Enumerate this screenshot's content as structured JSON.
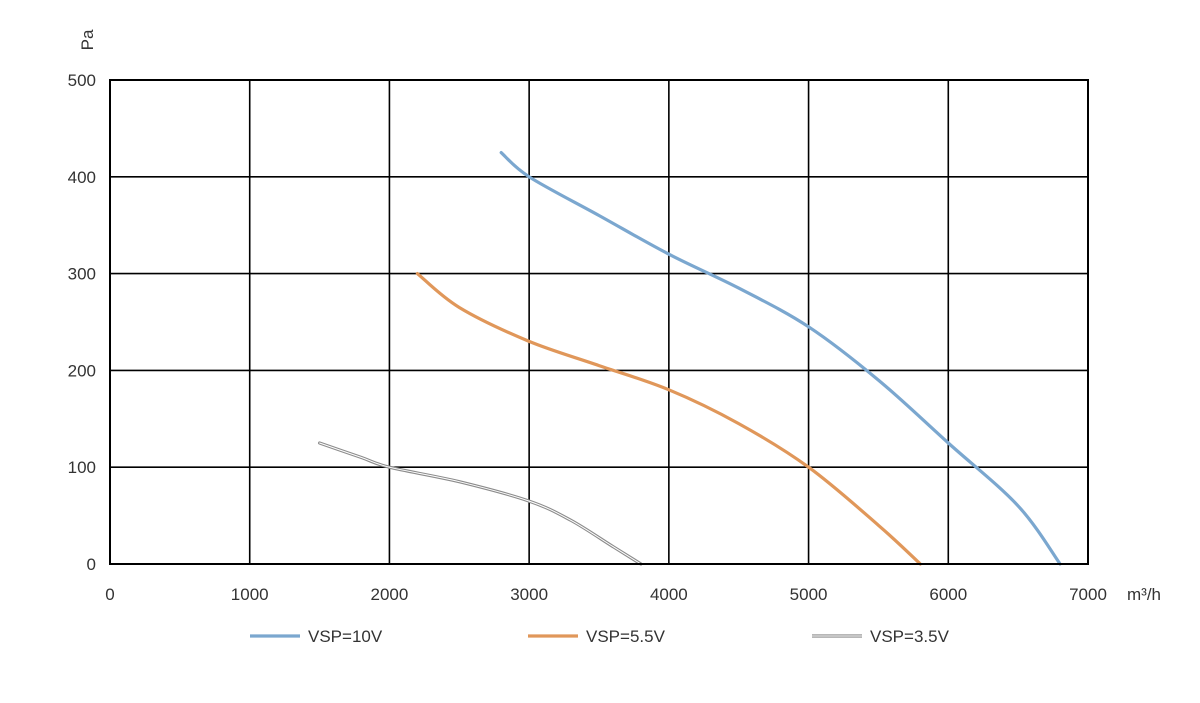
{
  "chart_data": {
    "type": "line",
    "title": "",
    "xlabel": "m³/h",
    "ylabel": "Pa",
    "xlim": [
      0,
      7000
    ],
    "ylim": [
      0,
      500
    ],
    "x_ticks": [
      0,
      1000,
      2000,
      3000,
      4000,
      5000,
      6000,
      7000
    ],
    "y_ticks": [
      0,
      100,
      200,
      300,
      400,
      500
    ],
    "grid": true,
    "legend_position": "bottom",
    "series": [
      {
        "name": "VSP=10V",
        "color": "#7ba7cf",
        "points": [
          [
            2800,
            425
          ],
          [
            3000,
            400
          ],
          [
            3500,
            360
          ],
          [
            4000,
            320
          ],
          [
            4500,
            285
          ],
          [
            5000,
            245
          ],
          [
            5500,
            190
          ],
          [
            6000,
            125
          ],
          [
            6500,
            60
          ],
          [
            6800,
            0
          ]
        ]
      },
      {
        "name": "VSP=5.5V",
        "color": "#e0975a",
        "points": [
          [
            2200,
            300
          ],
          [
            2500,
            265
          ],
          [
            3000,
            230
          ],
          [
            3500,
            205
          ],
          [
            4000,
            180
          ],
          [
            4500,
            145
          ],
          [
            5000,
            100
          ],
          [
            5500,
            40
          ],
          [
            5800,
            0
          ]
        ]
      },
      {
        "name": "VSP=3.5V",
        "color": "#a6a6a6",
        "points": [
          [
            1500,
            125
          ],
          [
            1800,
            110
          ],
          [
            2000,
            100
          ],
          [
            2500,
            85
          ],
          [
            3000,
            65
          ],
          [
            3300,
            45
          ],
          [
            3600,
            18
          ],
          [
            3800,
            0
          ]
        ]
      }
    ]
  }
}
